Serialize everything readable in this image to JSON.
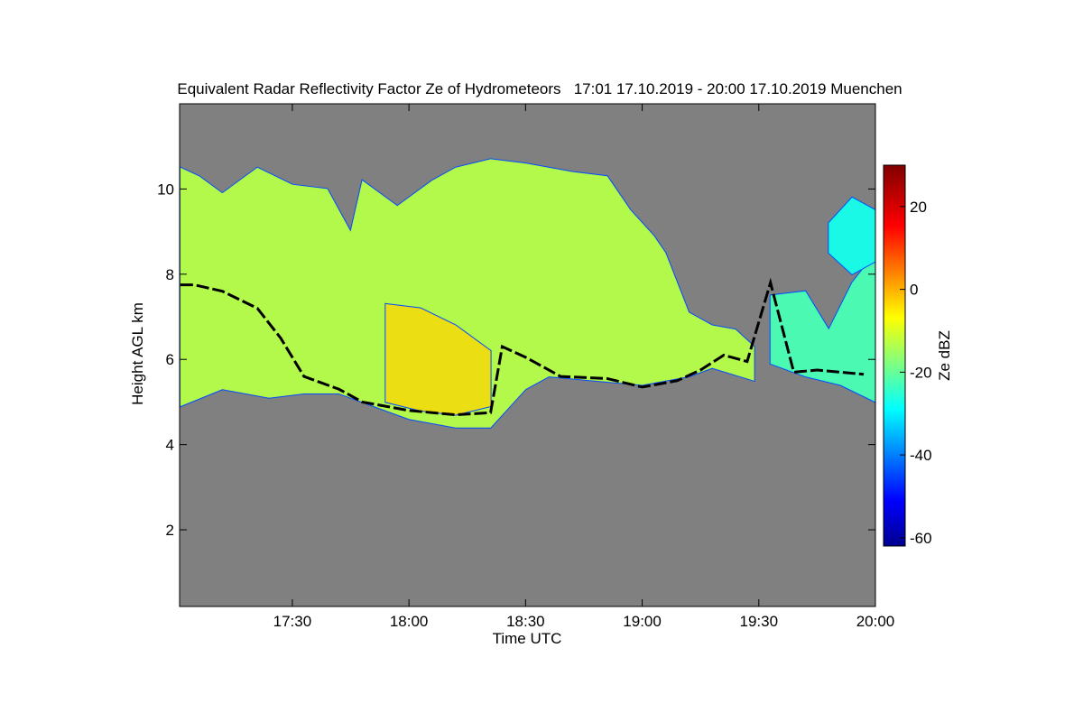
{
  "chart_data": {
    "type": "heatmap",
    "title": "Equivalent Radar Reflectivity Factor Ze of Hydrometeors   17:01 17.10.2019 - 20:00 17.10.2019 Muenchen",
    "xlabel": "Time UTC",
    "ylabel": "Height AGL km",
    "x_ticks": [
      "17:30",
      "18:00",
      "18:30",
      "19:00",
      "19:30",
      "20:00"
    ],
    "y_ticks": [
      "2",
      "4",
      "6",
      "8",
      "10"
    ],
    "xlim": [
      "17:01",
      "20:00"
    ],
    "ylim_km": [
      0.2,
      12.0
    ],
    "background_color": "#808080",
    "colorbar": {
      "label": "Ze dBZ",
      "ticks": [
        "-60",
        "-40",
        "-20",
        "0",
        "20"
      ],
      "range": [
        -62,
        30
      ],
      "colormap": "jet"
    },
    "cloud_layers": [
      {
        "name": "main cloud",
        "top_km": [
          [
            17.02,
            10.5
          ],
          [
            17.1,
            10.3
          ],
          [
            17.2,
            9.9
          ],
          [
            17.35,
            10.5
          ],
          [
            17.5,
            10.1
          ],
          [
            17.65,
            10.0
          ],
          [
            17.75,
            9.0
          ],
          [
            17.8,
            10.2
          ],
          [
            17.95,
            9.6
          ],
          [
            18.1,
            10.2
          ],
          [
            18.2,
            10.5
          ],
          [
            18.35,
            10.7
          ],
          [
            18.5,
            10.6
          ],
          [
            18.7,
            10.4
          ],
          [
            18.85,
            10.3
          ],
          [
            18.95,
            9.5
          ],
          [
            19.05,
            8.9
          ],
          [
            19.1,
            8.5
          ],
          [
            19.15,
            7.8
          ],
          [
            19.2,
            7.1
          ],
          [
            19.3,
            6.8
          ],
          [
            19.4,
            6.7
          ],
          [
            19.48,
            6.3
          ]
        ],
        "base_km": [
          [
            17.02,
            4.9
          ],
          [
            17.2,
            5.3
          ],
          [
            17.4,
            5.1
          ],
          [
            17.55,
            5.2
          ],
          [
            17.7,
            5.2
          ],
          [
            17.8,
            5.0
          ],
          [
            18.0,
            4.6
          ],
          [
            18.2,
            4.4
          ],
          [
            18.35,
            4.4
          ],
          [
            18.5,
            5.3
          ],
          [
            18.6,
            5.6
          ],
          [
            18.8,
            5.5
          ],
          [
            19.0,
            5.4
          ],
          [
            19.2,
            5.6
          ],
          [
            19.3,
            5.8
          ],
          [
            19.48,
            5.5
          ]
        ],
        "intensity_dbz": -10
      },
      {
        "name": "eastern cloud",
        "top_km": [
          [
            19.55,
            7.5
          ],
          [
            19.7,
            7.6
          ],
          [
            19.8,
            6.7
          ],
          [
            19.9,
            7.8
          ],
          [
            20.0,
            8.5
          ]
        ],
        "base_km": [
          [
            19.55,
            5.9
          ],
          [
            19.7,
            5.6
          ],
          [
            19.85,
            5.4
          ],
          [
            20.0,
            5.0
          ]
        ],
        "intensity_dbz": -20
      },
      {
        "name": "eastern upper cloud",
        "top_km": [
          [
            19.8,
            9.2
          ],
          [
            19.9,
            9.8
          ],
          [
            20.0,
            9.5
          ]
        ],
        "base_km": [
          [
            19.8,
            8.5
          ],
          [
            19.9,
            8.0
          ],
          [
            20.0,
            8.3
          ]
        ],
        "intensity_dbz": -25
      },
      {
        "name": "core",
        "top_km": [
          [
            17.9,
            7.3
          ],
          [
            18.05,
            7.2
          ],
          [
            18.2,
            6.8
          ],
          [
            18.35,
            6.2
          ]
        ],
        "base_km": [
          [
            17.9,
            5.0
          ],
          [
            18.05,
            4.8
          ],
          [
            18.2,
            4.7
          ],
          [
            18.35,
            4.9
          ]
        ],
        "intensity_dbz": -2
      }
    ],
    "melting_layer_km": [
      [
        17.02,
        7.75
      ],
      [
        17.08,
        7.75
      ],
      [
        17.2,
        7.6
      ],
      [
        17.35,
        7.2
      ],
      [
        17.45,
        6.5
      ],
      [
        17.55,
        5.6
      ],
      [
        17.7,
        5.3
      ],
      [
        17.8,
        5.0
      ],
      [
        18.0,
        4.8
      ],
      [
        18.2,
        4.7
      ],
      [
        18.35,
        4.75
      ],
      [
        18.4,
        6.3
      ],
      [
        18.5,
        6.05
      ],
      [
        18.65,
        5.6
      ],
      [
        18.85,
        5.55
      ],
      [
        19.0,
        5.35
      ],
      [
        19.15,
        5.5
      ],
      [
        19.25,
        5.75
      ],
      [
        19.35,
        6.1
      ],
      [
        19.45,
        5.95
      ],
      [
        19.55,
        7.8
      ],
      [
        19.65,
        5.7
      ],
      [
        19.75,
        5.75
      ],
      [
        19.85,
        5.7
      ],
      [
        19.95,
        5.65
      ]
    ]
  }
}
